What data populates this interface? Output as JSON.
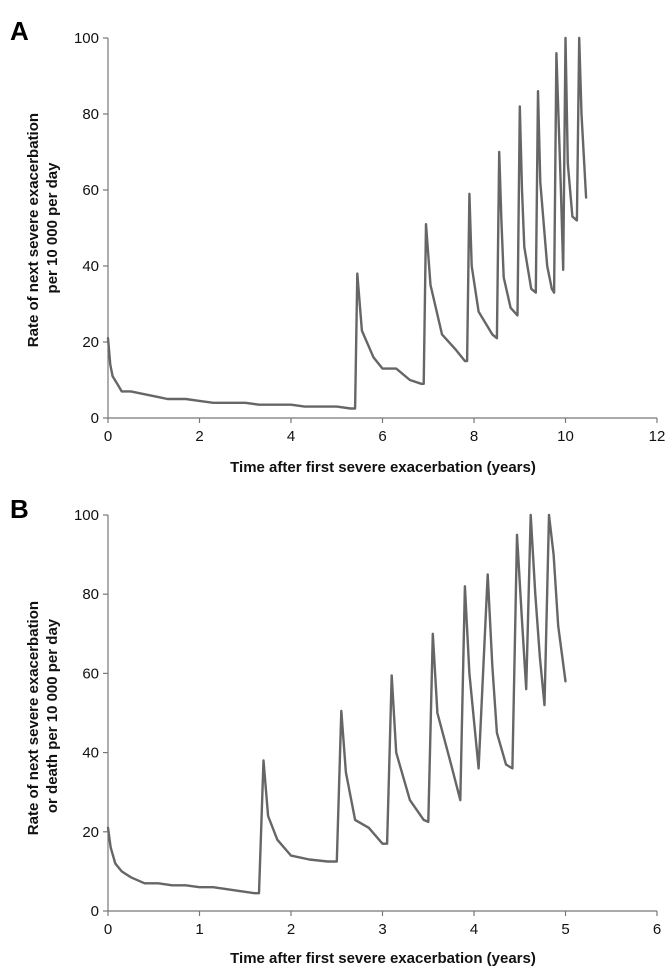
{
  "chart_data": [
    {
      "panel_label": "A",
      "type": "line",
      "title": "",
      "xlabel": "Time after first severe exacerbation (years)",
      "ylabel_lines": [
        "Rate of next severe exacerbation",
        "per 10 000 per day"
      ],
      "xlim": [
        0,
        12
      ],
      "ylim": [
        0,
        100
      ],
      "xticks": [
        0,
        2,
        4,
        6,
        8,
        10,
        12
      ],
      "yticks": [
        0,
        20,
        40,
        60,
        80,
        100
      ],
      "grid": false,
      "color": "#666666",
      "series": [
        {
          "x": [
            0,
            0.05,
            0.1,
            0.2,
            0.3,
            0.5,
            0.7,
            0.9,
            1.1,
            1.3,
            1.5,
            1.7,
            2.0,
            2.3,
            2.6,
            3.0,
            3.3,
            3.6,
            4.0,
            4.3,
            4.6,
            5.0,
            5.3,
            5.4,
            5.45,
            5.55,
            5.8,
            6.0,
            6.3,
            6.6,
            6.85,
            6.9,
            6.95,
            7.05,
            7.3,
            7.6,
            7.8,
            7.85,
            7.9,
            7.95,
            8.1,
            8.4,
            8.5,
            8.55,
            8.6,
            8.65,
            8.8,
            8.95,
            9.0,
            9.05,
            9.1,
            9.25,
            9.35,
            9.4,
            9.45,
            9.6,
            9.7,
            9.75,
            9.8,
            9.9,
            9.95,
            10.0,
            10.05,
            10.15,
            10.25,
            10.3,
            10.35,
            10.45
          ],
          "y": [
            21,
            14,
            11,
            9,
            7,
            7,
            6.5,
            6,
            5.5,
            5,
            5,
            5,
            4.5,
            4,
            4,
            4,
            3.5,
            3.5,
            3.5,
            3,
            3,
            3,
            2.5,
            2.5,
            38,
            23,
            16,
            13,
            13,
            10,
            9,
            9,
            51,
            35,
            22,
            18,
            15,
            15,
            59,
            40,
            28,
            22,
            21,
            70,
            52,
            37,
            29,
            27,
            82,
            60,
            45,
            34,
            33,
            86,
            62,
            40,
            34,
            33,
            96,
            60,
            39,
            100,
            67,
            53,
            52,
            100,
            80,
            58
          ]
        }
      ]
    },
    {
      "panel_label": "B",
      "type": "line",
      "title": "",
      "xlabel": "Time after first severe exacerbation (years)",
      "ylabel_lines": [
        "Rate of next severe exacerbation",
        "or death per 10 000 per day"
      ],
      "xlim": [
        0,
        6
      ],
      "ylim": [
        0,
        100
      ],
      "xticks": [
        0,
        1,
        2,
        3,
        4,
        5,
        6
      ],
      "yticks": [
        0,
        20,
        40,
        60,
        80,
        100
      ],
      "grid": false,
      "color": "#666666",
      "series": [
        {
          "x": [
            0,
            0.03,
            0.08,
            0.15,
            0.25,
            0.4,
            0.55,
            0.7,
            0.85,
            1.0,
            1.15,
            1.3,
            1.45,
            1.6,
            1.65,
            1.7,
            1.75,
            1.85,
            2.0,
            2.2,
            2.4,
            2.5,
            2.55,
            2.6,
            2.7,
            2.85,
            3.0,
            3.05,
            3.1,
            3.15,
            3.3,
            3.45,
            3.5,
            3.55,
            3.6,
            3.75,
            3.85,
            3.9,
            3.95,
            4.05,
            4.15,
            4.2,
            4.25,
            4.35,
            4.42,
            4.47,
            4.52,
            4.57,
            4.62,
            4.67,
            4.72,
            4.77,
            4.82,
            4.87,
            4.92,
            5.0
          ],
          "y": [
            21,
            16,
            12,
            10,
            8.5,
            7,
            7,
            6.5,
            6.5,
            6,
            6,
            5.5,
            5,
            4.5,
            4.5,
            38,
            24,
            18,
            14,
            13,
            12.5,
            12.5,
            50.5,
            35,
            23,
            21,
            17,
            17,
            59.5,
            40,
            28,
            23,
            22.5,
            70,
            50,
            37,
            28,
            82,
            60,
            36,
            85,
            62,
            45,
            37,
            36,
            95,
            75,
            56,
            100,
            80,
            64,
            52,
            100,
            90,
            72,
            58
          ]
        }
      ]
    }
  ]
}
